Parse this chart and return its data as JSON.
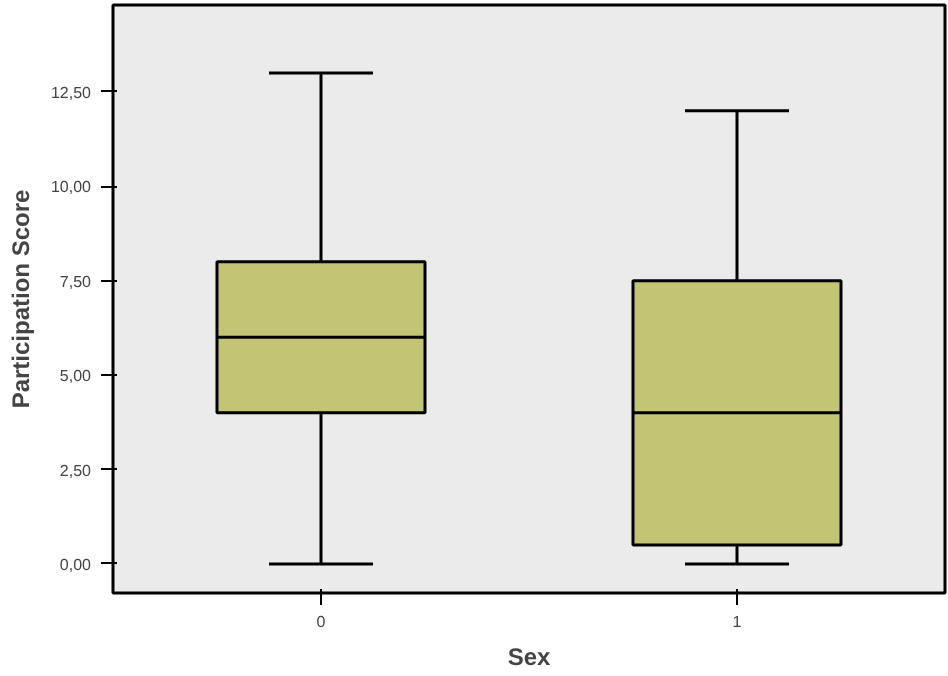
{
  "chart_data": {
    "type": "box",
    "xlabel": "Sex",
    "ylabel": "Participation Score",
    "categories": [
      "0",
      "1"
    ],
    "series": [
      {
        "color": "#c3c474",
        "boxes": [
          {
            "low": 0,
            "q1": 4,
            "median": 6,
            "q3": 8,
            "high": 13
          },
          {
            "low": 0,
            "q1": 0.5,
            "median": 4,
            "q3": 7.5,
            "high": 12
          }
        ]
      }
    ],
    "ylim": [
      -0.77,
      14.8
    ],
    "yticks": [
      {
        "value": 0,
        "label": "0,00"
      },
      {
        "value": 2.5,
        "label": "2,50"
      },
      {
        "value": 5,
        "label": "5,00"
      },
      {
        "value": 7.5,
        "label": "7,50"
      },
      {
        "value": 10,
        "label": "10,00"
      },
      {
        "value": 12.5,
        "label": "12,50"
      }
    ],
    "grid": false
  }
}
